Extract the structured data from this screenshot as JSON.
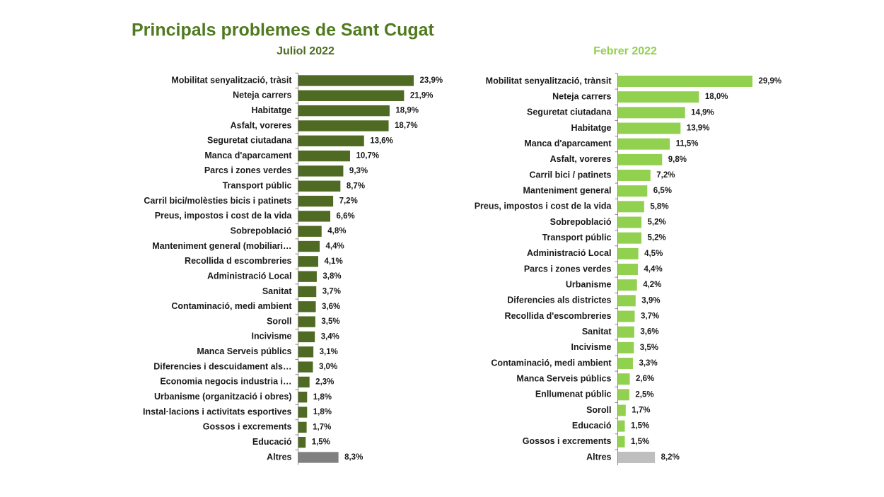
{
  "title": "Principals problemes de Sant Cugat",
  "chart_data": [
    {
      "type": "bar",
      "orientation": "horizontal",
      "subtitle": "Juliol 2022",
      "categories": [
        "Mobilitat senyalització, tràsit",
        "Neteja carrers",
        "Habitatge",
        "Asfalt, voreres",
        "Seguretat ciutadana",
        "Manca d'aparcament",
        "Parcs i zones verdes",
        "Transport públic",
        "Carril bici/molèsties bicis i patinets",
        "Preus, impostos i cost de la vida",
        "Sobrepoblació",
        "Manteniment general (mobiliari…",
        "Recollida d escombreries",
        "Administració Local",
        "Sanitat",
        "Contaminació, medi ambient",
        "Soroll",
        "Incivisme",
        "Manca Serveis públics",
        "Diferencies i descuidament als…",
        "Economia negocis industria i…",
        "Urbanisme (organització i obres)",
        "Instal·lacions i activitats esportives",
        "Gossos i excrements",
        "Educació",
        "Altres"
      ],
      "values": [
        23.9,
        21.9,
        18.9,
        18.7,
        13.6,
        10.7,
        9.3,
        8.7,
        7.2,
        6.6,
        4.8,
        4.4,
        4.1,
        3.8,
        3.7,
        3.6,
        3.5,
        3.4,
        3.1,
        3.0,
        2.3,
        1.8,
        1.8,
        1.7,
        1.5,
        8.3
      ],
      "value_labels": [
        "23,9%",
        "21,9%",
        "18,9%",
        "18,7%",
        "13,6%",
        "10,7%",
        "9,3%",
        "8,7%",
        "7,2%",
        "6,6%",
        "4,8%",
        "4,4%",
        "4,1%",
        "3,8%",
        "3,7%",
        "3,6%",
        "3,5%",
        "3,4%",
        "3,1%",
        "3,0%",
        "2,3%",
        "1,8%",
        "1,8%",
        "1,7%",
        "1,5%",
        "8,3%"
      ],
      "colors": [
        "#4f6a22",
        "#4f6a22",
        "#4f6a22",
        "#4f6a22",
        "#4f6a22",
        "#4f6a22",
        "#4f6a22",
        "#4f6a22",
        "#4f6a22",
        "#4f6a22",
        "#4f6a22",
        "#4f6a22",
        "#4f6a22",
        "#4f6a22",
        "#4f6a22",
        "#4f6a22",
        "#4f6a22",
        "#4f6a22",
        "#4f6a22",
        "#4f6a22",
        "#4f6a22",
        "#4f6a22",
        "#4f6a22",
        "#4f6a22",
        "#4f6a22",
        "#808080"
      ],
      "subtitle_color": "#4f6a22"
    },
    {
      "type": "bar",
      "orientation": "horizontal",
      "subtitle": "Febrer 2022",
      "categories": [
        "Mobilitat senyalització, trànsit",
        "Neteja carrers",
        "Seguretat ciutadana",
        "Habitatge",
        "Manca d'aparcament",
        "Asfalt, voreres",
        "Carril bici / patinets",
        "Manteniment general",
        "Preus, impostos i cost de la vida",
        "Sobrepoblació",
        "Transport públic",
        "Administració Local",
        "Parcs i zones verdes",
        "Urbanisme",
        "Diferencies  als districtes",
        "Recollida d'escombreries",
        "Sanitat",
        "Incivisme",
        "Contaminació, medi ambient",
        "Manca Serveis públics",
        "Enllumenat públic",
        "Soroll",
        "Educació",
        "Gossos i excrements",
        "Altres"
      ],
      "values": [
        29.9,
        18.0,
        14.9,
        13.9,
        11.5,
        9.8,
        7.2,
        6.5,
        5.8,
        5.2,
        5.2,
        4.5,
        4.4,
        4.2,
        3.9,
        3.7,
        3.6,
        3.5,
        3.3,
        2.6,
        2.5,
        1.7,
        1.5,
        1.5,
        8.2
      ],
      "value_labels": [
        "29,9%",
        "18,0%",
        "14,9%",
        "13,9%",
        "11,5%",
        "9,8%",
        "7,2%",
        "6,5%",
        "5,8%",
        "5,2%",
        "5,2%",
        "4,5%",
        "4,4%",
        "4,2%",
        "3,9%",
        "3,7%",
        "3,6%",
        "3,5%",
        "3,3%",
        "2,6%",
        "2,5%",
        "1,7%",
        "1,5%",
        "1,5%",
        "8,2%"
      ],
      "colors": [
        "#92d050",
        "#92d050",
        "#92d050",
        "#92d050",
        "#92d050",
        "#92d050",
        "#92d050",
        "#92d050",
        "#92d050",
        "#92d050",
        "#92d050",
        "#92d050",
        "#92d050",
        "#92d050",
        "#92d050",
        "#92d050",
        "#92d050",
        "#92d050",
        "#92d050",
        "#92d050",
        "#92d050",
        "#92d050",
        "#92d050",
        "#92d050",
        "#bfbfbf"
      ],
      "subtitle_color": "#92d050"
    }
  ]
}
